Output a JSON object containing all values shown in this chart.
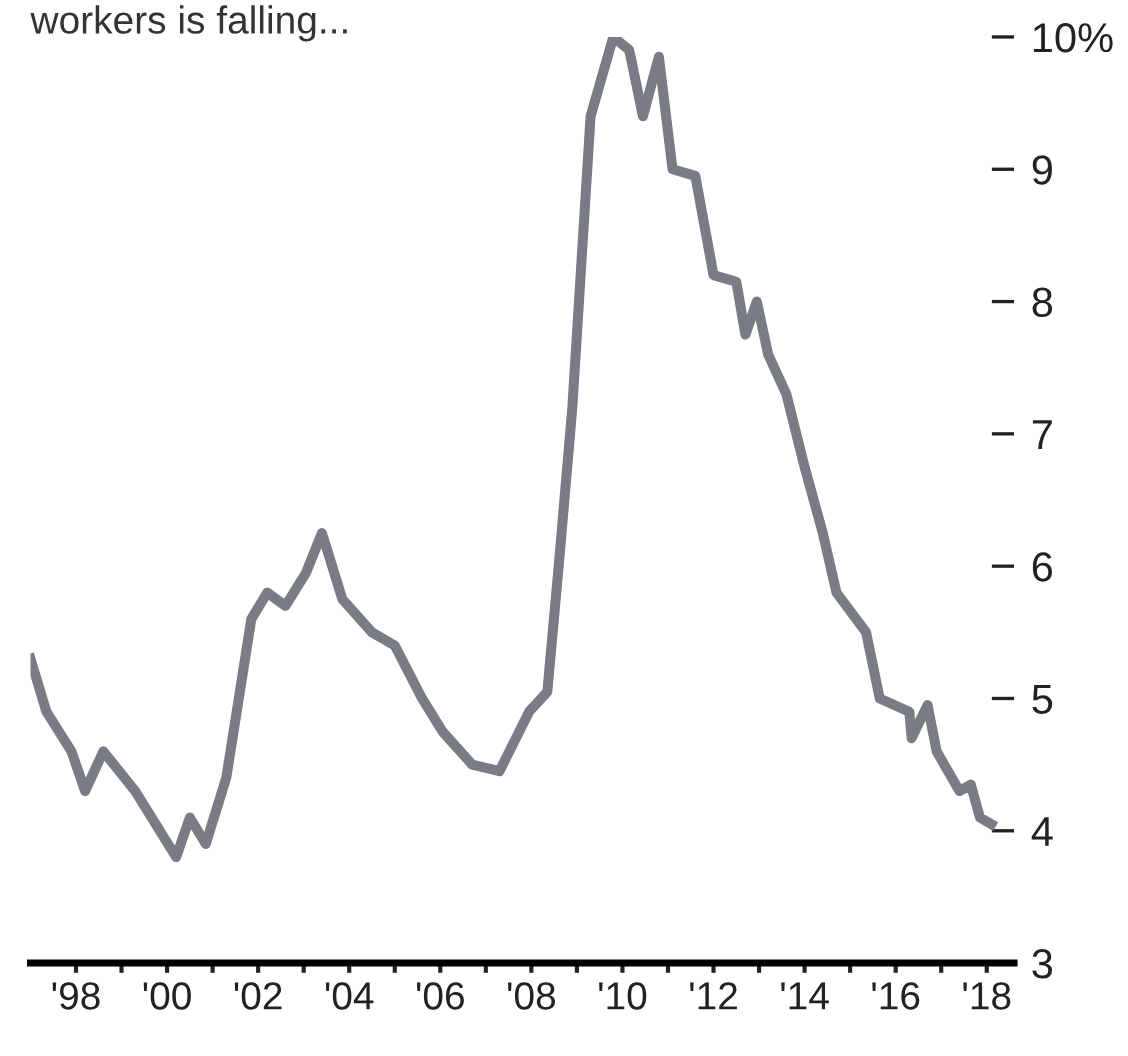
{
  "chart_data": {
    "type": "line",
    "title": "workers is falling...",
    "series": [
      {
        "color": "#797c84",
        "x": [
          1997.0,
          1997.35,
          1997.9,
          1998.2,
          1998.6,
          1999.3,
          2000.2,
          2000.5,
          2000.85,
          2001.3,
          2001.85,
          2002.2,
          2002.6,
          2003.05,
          2003.4,
          2003.85,
          2004.5,
          2005.0,
          2005.6,
          2006.05,
          2006.7,
          2007.3,
          2007.95,
          2008.35,
          2008.6,
          2008.9,
          2009.3,
          2009.8,
          2010.15,
          2010.45,
          2010.8,
          2011.1,
          2011.6,
          2012.0,
          2012.5,
          2012.7,
          2012.95,
          2013.2,
          2013.6,
          2014.0,
          2014.4,
          2014.7,
          2015.35,
          2015.65,
          2016.3,
          2016.35,
          2016.7,
          2016.9,
          2017.4,
          2017.65,
          2017.85,
          2018.1
        ],
        "values": [
          5.3,
          4.9,
          4.6,
          4.3,
          4.6,
          4.3,
          3.8,
          4.1,
          3.9,
          4.4,
          5.6,
          5.8,
          5.7,
          5.95,
          6.25,
          5.75,
          5.5,
          5.4,
          5.0,
          4.75,
          4.5,
          4.45,
          4.9,
          5.05,
          6.0,
          7.2,
          9.4,
          10.0,
          9.9,
          9.4,
          9.85,
          9.0,
          8.95,
          8.2,
          8.15,
          7.75,
          8.0,
          7.6,
          7.3,
          6.75,
          6.25,
          5.8,
          5.5,
          5.0,
          4.9,
          4.7,
          4.95,
          4.6,
          4.3,
          4.35,
          4.1,
          4.05
        ]
      }
    ],
    "xlim": [
      1997.0,
      2018.6
    ],
    "ylim": [
      3,
      10
    ],
    "xticks": [
      {
        "value": 1998,
        "label": "'98"
      },
      {
        "value": 1999,
        "label": null
      },
      {
        "value": 2000,
        "label": "'00"
      },
      {
        "value": 2001,
        "label": null
      },
      {
        "value": 2002,
        "label": "'02"
      },
      {
        "value": 2003,
        "label": null
      },
      {
        "value": 2004,
        "label": "'04"
      },
      {
        "value": 2005,
        "label": null
      },
      {
        "value": 2006,
        "label": "'06"
      },
      {
        "value": 2007,
        "label": null
      },
      {
        "value": 2008,
        "label": "'08"
      },
      {
        "value": 2009,
        "label": null
      },
      {
        "value": 2010,
        "label": "'10"
      },
      {
        "value": 2011,
        "label": null
      },
      {
        "value": 2012,
        "label": "'12"
      },
      {
        "value": 2013,
        "label": null
      },
      {
        "value": 2014,
        "label": "'14"
      },
      {
        "value": 2015,
        "label": null
      },
      {
        "value": 2016,
        "label": "'16"
      },
      {
        "value": 2017,
        "label": null
      },
      {
        "value": 2018,
        "label": "'18"
      }
    ],
    "yticks": [
      3,
      4,
      5,
      6,
      7,
      8,
      9,
      {
        "value": 10,
        "label": "10%"
      }
    ],
    "grid": false,
    "legend": false,
    "marker": "none",
    "line_style": "solid"
  }
}
